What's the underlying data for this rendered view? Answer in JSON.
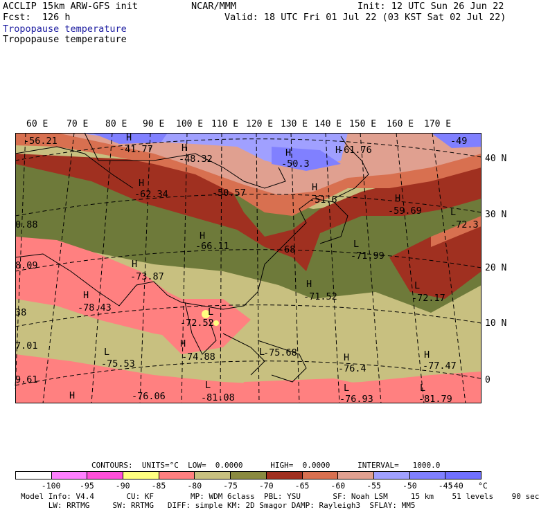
{
  "header": {
    "model": "ACCLIP 15km ARW-GFS init",
    "center": "NCAR/MMM",
    "init": "Init: 12 UTC Sun 26 Jun 22",
    "fcst": "Fcst:  126 h",
    "valid": "Valid: 18 UTC Fri 01 Jul 22 (03 KST Sat 02 Jul 22)",
    "field_title": "Tropopause temperature",
    "field_title_2": "Tropopause temperature"
  },
  "axes": {
    "longitudes": [
      "60 E",
      "70 E",
      "80 E",
      "90 E",
      "100 E",
      "110 E",
      "120 E",
      "130 E",
      "140 E",
      "150 E",
      "160 E",
      "170 E"
    ],
    "latitudes": [
      "40 N",
      "30 N",
      "20 N",
      "10 N",
      "0"
    ]
  },
  "map_labels": {
    "highs": [
      "H",
      "H",
      "H",
      "H",
      "H",
      "H",
      "H",
      "H",
      "H",
      "H",
      "H",
      "H",
      "H"
    ],
    "lows": [
      "L",
      "L",
      "L",
      "L",
      "L",
      "L",
      "L",
      "L",
      "L",
      "L"
    ],
    "values": [
      "-56.21",
      "-41.77",
      "-48.32",
      "-50.3",
      "-61.76",
      "-49",
      "-62.34",
      "-50.57",
      "-51.6",
      "-59.69",
      "-72.3",
      "0.88",
      "-66.11",
      "-68",
      "-71.99",
      "8.09",
      "-73.87",
      "-71.52",
      "-72.17",
      "-78.43",
      "38",
      "-72.52",
      "-74.88",
      "-75.68",
      "-76.4",
      "-77.47",
      "7.01",
      "-75.53",
      "9.61",
      "-76.06",
      "-81.08",
      "-76.93",
      "-81.79"
    ]
  },
  "legend": {
    "contours_line": "CONTOURS:  UNITS=°C  LOW=  0.0000      HIGH=  0.0000      INTERVAL=   1000.0",
    "ticks": [
      "-100",
      "-95",
      "-90",
      "-85",
      "-80",
      "-75",
      "-70",
      "-65",
      "-60",
      "-55",
      "-50",
      "-45",
      "-40",
      "°C"
    ],
    "colors": [
      "#ffffff",
      "#ff80ff",
      "#ff4fd8",
      "#ffff80",
      "#ff8080",
      "#c8c080",
      "#8a8a40",
      "#a03020",
      "#d87050",
      "#e0a090",
      "#a0a0ff",
      "#8080ff",
      "#7070ff"
    ]
  },
  "footer": {
    "line1": "Model Info: V4.4       CU: KF        MP: WDM 6class  PBL: YSU       SF: Noah LSM     15 km    51 levels    90 sec",
    "line2": "      LW: RRTMG     SW: RRTMG   DIFF: simple KM: 2D Smagor DAMP: Rayleigh3  SFLAY: MM5"
  },
  "colors": {
    "cold_pink": "#ff8080",
    "olive_light": "#c8c080",
    "olive_dark": "#6e7a3a",
    "brown_red": "#a03020",
    "orange": "#d87050",
    "rose": "#e0a090",
    "lavender": "#a0a0ff",
    "blue": "#8080ff"
  }
}
